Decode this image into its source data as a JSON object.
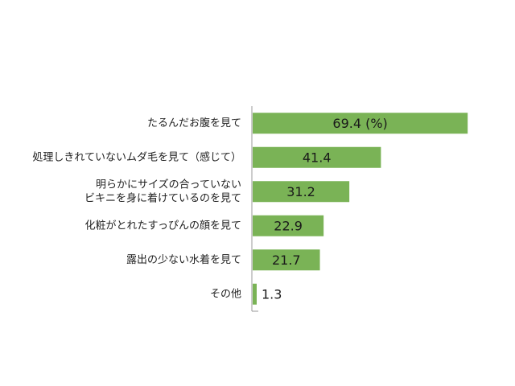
{
  "chart_data": {
    "type": "bar",
    "orientation": "horizontal",
    "categories": [
      [
        "たるんだお腹を見て"
      ],
      [
        "処理しきれていないムダ毛を見て（感じて）"
      ],
      [
        "明らかにサイズの合っていない",
        "ビキニを身に着けているのを見て"
      ],
      [
        "化粧がとれたすっぴんの顔を見て"
      ],
      [
        "露出の少ない水着を見て"
      ],
      [
        "その他"
      ]
    ],
    "values": [
      69.4,
      41.4,
      31.2,
      22.9,
      21.7,
      1.3
    ],
    "value_labels": [
      "69.4 (%)",
      "41.4",
      "31.2",
      "22.9",
      "21.7",
      "1.3"
    ],
    "xlim": [
      0,
      100
    ],
    "bar_color": "#7ab356",
    "axis_color": "#999999",
    "grid": false,
    "legend": "none"
  }
}
